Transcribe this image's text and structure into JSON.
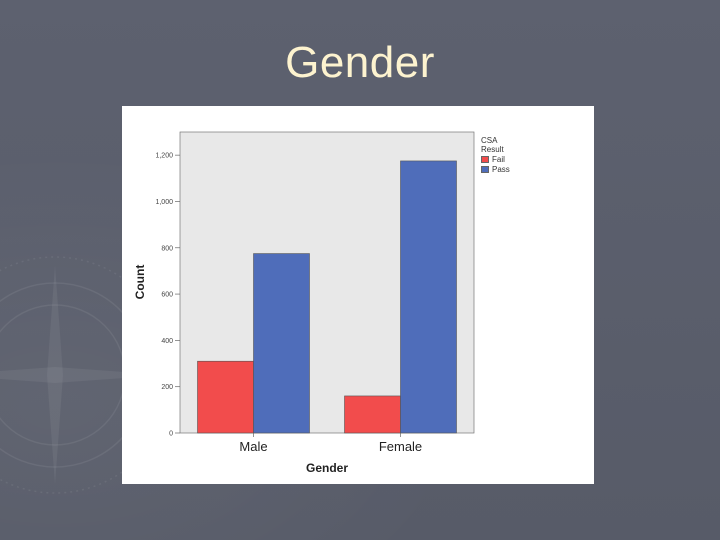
{
  "slide": {
    "title": "Gender",
    "background_color": "#5b5f6d",
    "title_color": "#fdf3cf"
  },
  "chart_data": {
    "type": "bar",
    "title": "",
    "xlabel": "Gender",
    "ylabel": "Count",
    "categories": [
      "Male",
      "Female"
    ],
    "series": [
      {
        "name": "Fail",
        "color": "#f24c4c",
        "values": [
          310,
          160
        ]
      },
      {
        "name": "Pass",
        "color": "#4f6dba",
        "values": [
          775,
          1175
        ]
      }
    ],
    "ylim": [
      0,
      1300
    ],
    "yticks": [
      0,
      200,
      400,
      600,
      800,
      1000,
      1200
    ],
    "ytick_labels": [
      "0",
      "200",
      "400",
      "600",
      "800",
      "1,000",
      "1,200"
    ],
    "legend_title": "CSA Result",
    "legend_position": "right",
    "plot_background": "#e8e8e8",
    "grid": false
  }
}
